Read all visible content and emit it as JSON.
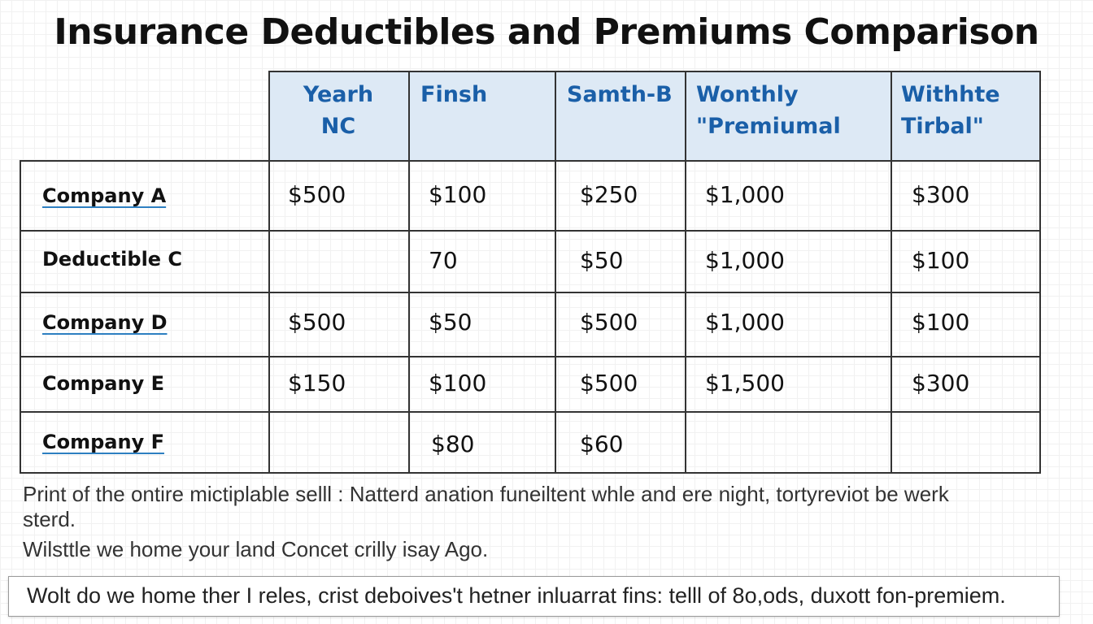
{
  "title": "Insurance Deductibles and Premiums Comparison",
  "table": {
    "headers": [
      {
        "line1": "Yearh",
        "line2": "NC"
      },
      {
        "line1": "Finsh",
        "line2": ""
      },
      {
        "line1": "Samth-B",
        "line2": ""
      },
      {
        "line1": "Wonthly",
        "line2": "\"Premiumal"
      },
      {
        "line1": "Withhte",
        "line2": "Tirbal\""
      }
    ],
    "rows": [
      {
        "label": "Company A",
        "cells": [
          "$500",
          "$100",
          "$250",
          "$1,000",
          "$300"
        ]
      },
      {
        "label": "Deductible C",
        "cells": [
          "",
          "70",
          "$50",
          "$1,000",
          "$100"
        ]
      },
      {
        "label": "Company D",
        "cells": [
          "$500",
          "$50",
          "$500",
          "$1,000",
          "$100"
        ]
      },
      {
        "label": "Company E",
        "cells": [
          "$150",
          "$100",
          "$500",
          "$1,500",
          "$300"
        ]
      },
      {
        "label": "Company F",
        "cells": [
          "",
          "$80",
          "$60",
          "",
          ""
        ]
      }
    ]
  },
  "notes": {
    "line1": "Print of the ontire mictiplable selll : Natterd anation funeiltent whle and ere night, tortyreviot be werk",
    "line2": "sterd.",
    "line3": "Wilsttle we home your land Concet crilly isay Ago."
  },
  "footer": "Wolt do we home ther I reles, crist deboives't hetner inluarrat fins: telll of 8o,ods, duxott fon-premiem."
}
